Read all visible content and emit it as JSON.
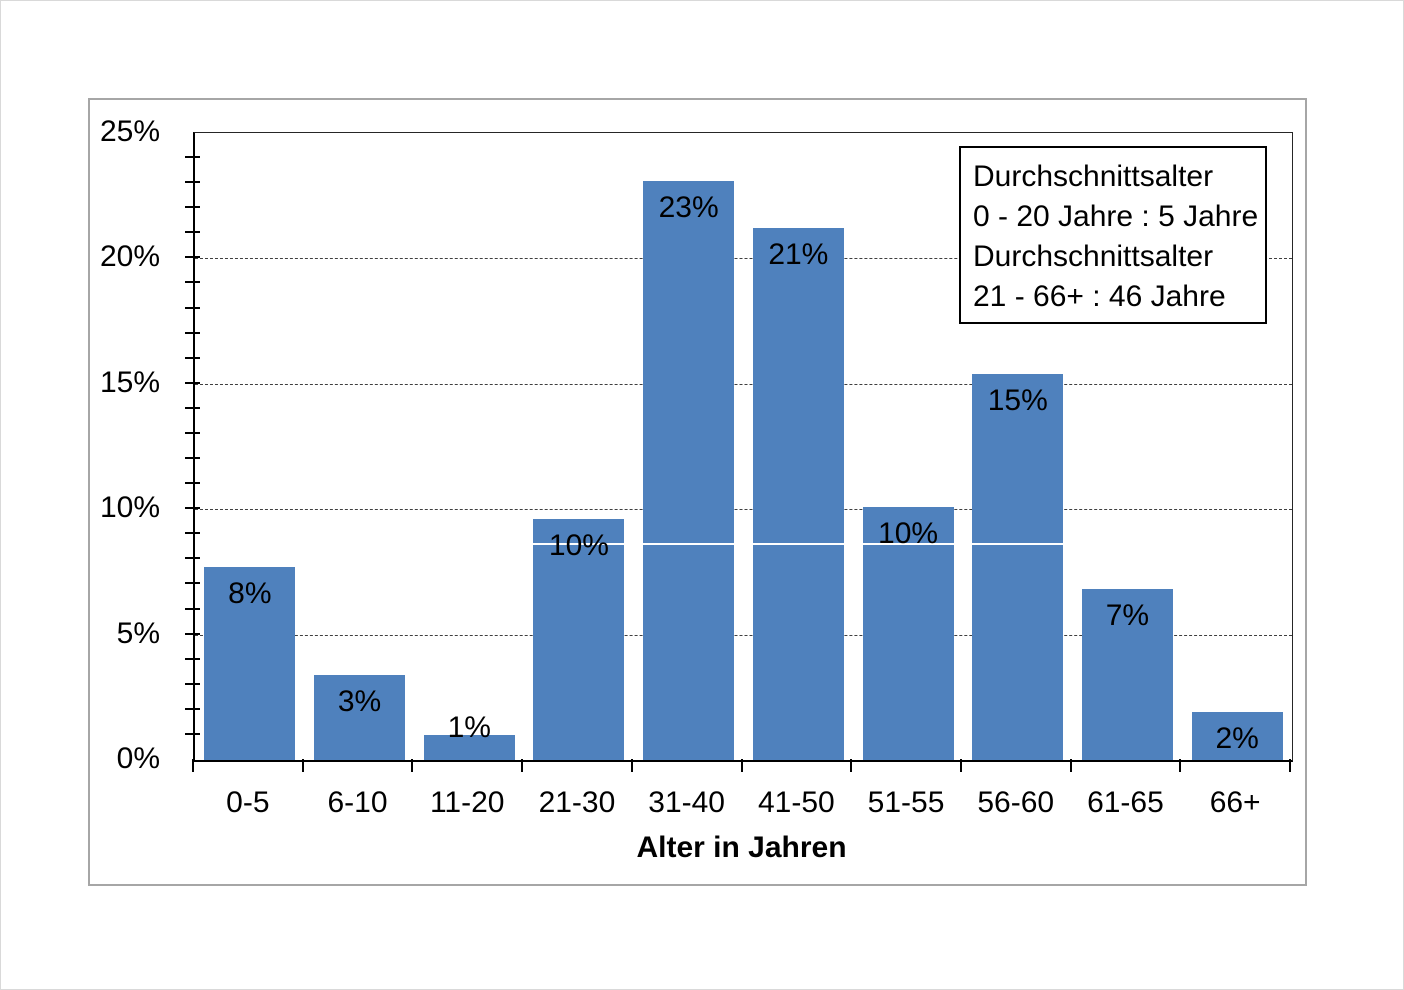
{
  "chart_data": {
    "type": "bar",
    "title": "",
    "xlabel": "Alter in Jahren",
    "ylabel": "",
    "categories": [
      "0-5",
      "6-10",
      "11-20",
      "21-30",
      "31-40",
      "41-50",
      "51-55",
      "56-60",
      "61-65",
      "66+"
    ],
    "values": [
      7.7,
      3.4,
      1.0,
      9.6,
      23.1,
      21.2,
      10.1,
      15.4,
      6.8,
      1.9
    ],
    "bar_labels": [
      "8%",
      "3%",
      "1%",
      "10%",
      "23%",
      "21%",
      "10%",
      "15%",
      "7%",
      "2%"
    ],
    "y_tick_labels": [
      "0%",
      "5%",
      "10%",
      "15%",
      "20%",
      "25%"
    ],
    "ylim": [
      0,
      25
    ],
    "y_major_step": 5,
    "y_minor_step": 1,
    "grid": "horizontal dashed lines at each 5% major tick",
    "legend_position": "top-right inside plot",
    "annotation_lines": [
      "Durchschnittsalter",
      "0 - 20 Jahre : 5 Jahre",
      "Durchschnittsalter",
      "21 - 66+ : 46 Jahre"
    ],
    "overlay_hairline_at_pct": 8.65
  },
  "colors": {
    "bar": "#4f81bd",
    "grid": "#3f3f3f",
    "axis": "#000000",
    "frame_border": "#a6a6a6",
    "text": "#000000",
    "overlay_hairline": "#ffffff"
  }
}
